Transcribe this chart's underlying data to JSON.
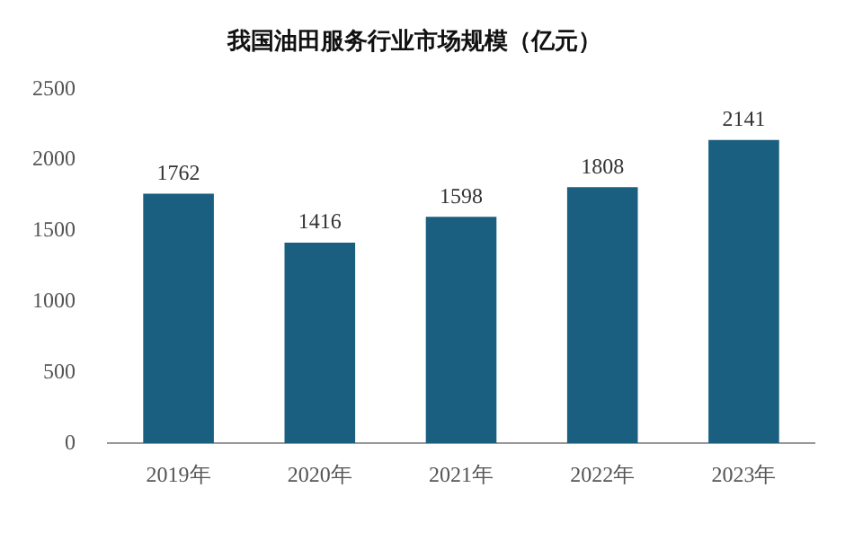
{
  "chart_data": {
    "type": "bar",
    "title": "我国油田服务行业市场规模（亿元）",
    "categories": [
      "2019年",
      "2020年",
      "2021年",
      "2022年",
      "2023年"
    ],
    "values": [
      1762,
      1416,
      1598,
      1808,
      2141
    ],
    "color": "#1b5f80",
    "ylim": [
      0,
      2500
    ],
    "yticks": [
      0,
      500,
      1000,
      1500,
      2000,
      2500
    ],
    "data_labels": true
  }
}
